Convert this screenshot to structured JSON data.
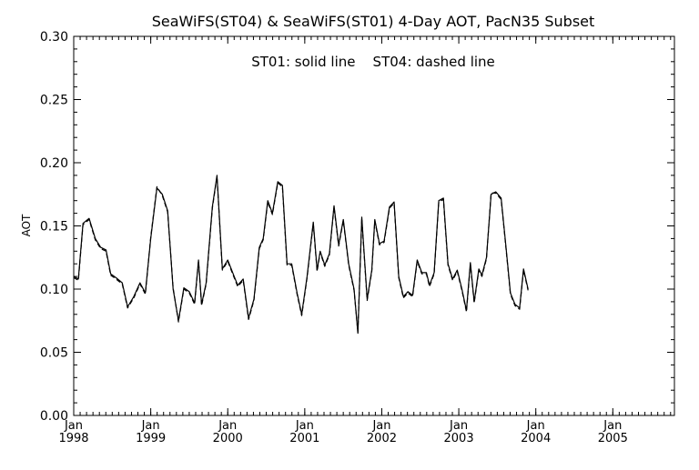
{
  "chart_data": {
    "type": "line",
    "title": "SeaWiFS(ST04) & SeaWiFS(ST01) 4-Day AOT, PacN35 Subset",
    "annotation": "ST01: solid line    ST04: dashed line",
    "ylabel": "AOT",
    "xlabel": "",
    "xlim": [
      1998.0,
      2005.8
    ],
    "ylim": [
      0.0,
      0.3
    ],
    "grid": false,
    "y_ticks": [
      {
        "value": 0.0,
        "label": "0.00"
      },
      {
        "value": 0.05,
        "label": "0.05"
      },
      {
        "value": 0.1,
        "label": "0.10"
      },
      {
        "value": 0.15,
        "label": "0.15"
      },
      {
        "value": 0.2,
        "label": "0.20"
      },
      {
        "value": 0.25,
        "label": "0.25"
      },
      {
        "value": 0.3,
        "label": "0.30"
      }
    ],
    "x_ticks": [
      {
        "value": 1998.0,
        "month": "Jan",
        "year": "1998"
      },
      {
        "value": 1999.0,
        "month": "Jan",
        "year": "1999"
      },
      {
        "value": 2000.0,
        "month": "Jan",
        "year": "2000"
      },
      {
        "value": 2001.0,
        "month": "Jan",
        "year": "2001"
      },
      {
        "value": 2002.0,
        "month": "Jan",
        "year": "2002"
      },
      {
        "value": 2003.0,
        "month": "Jan",
        "year": "2003"
      },
      {
        "value": 2004.0,
        "month": "Jan",
        "year": "2004"
      },
      {
        "value": 2005.0,
        "month": "Jan",
        "year": "2005"
      }
    ],
    "series": [
      {
        "name": "ST01",
        "style": "solid",
        "color": "#000000",
        "points": [
          [
            1998.0,
            0.11
          ],
          [
            1998.06,
            0.108
          ],
          [
            1998.12,
            0.152
          ],
          [
            1998.2,
            0.156
          ],
          [
            1998.28,
            0.14
          ],
          [
            1998.35,
            0.133
          ],
          [
            1998.42,
            0.131
          ],
          [
            1998.48,
            0.112
          ],
          [
            1998.55,
            0.109
          ],
          [
            1998.63,
            0.105
          ],
          [
            1998.7,
            0.086
          ],
          [
            1998.78,
            0.094
          ],
          [
            1998.86,
            0.105
          ],
          [
            1998.93,
            0.097
          ],
          [
            1999.0,
            0.14
          ],
          [
            1999.08,
            0.18
          ],
          [
            1999.15,
            0.175
          ],
          [
            1999.22,
            0.162
          ],
          [
            1999.29,
            0.1
          ],
          [
            1999.36,
            0.075
          ],
          [
            1999.43,
            0.101
          ],
          [
            1999.5,
            0.098
          ],
          [
            1999.57,
            0.089
          ],
          [
            1999.62,
            0.123
          ],
          [
            1999.66,
            0.088
          ],
          [
            1999.72,
            0.105
          ],
          [
            1999.8,
            0.165
          ],
          [
            1999.86,
            0.19
          ],
          [
            1999.93,
            0.116
          ],
          [
            2000.0,
            0.123
          ],
          [
            2000.07,
            0.112
          ],
          [
            2000.13,
            0.103
          ],
          [
            2000.2,
            0.108
          ],
          [
            2000.27,
            0.077
          ],
          [
            2000.34,
            0.092
          ],
          [
            2000.41,
            0.133
          ],
          [
            2000.46,
            0.14
          ],
          [
            2000.52,
            0.17
          ],
          [
            2000.58,
            0.16
          ],
          [
            2000.65,
            0.185
          ],
          [
            2000.71,
            0.182
          ],
          [
            2000.77,
            0.12
          ],
          [
            2000.83,
            0.12
          ],
          [
            2000.9,
            0.097
          ],
          [
            2000.96,
            0.08
          ],
          [
            2001.03,
            0.11
          ],
          [
            2001.11,
            0.153
          ],
          [
            2001.16,
            0.115
          ],
          [
            2001.2,
            0.13
          ],
          [
            2001.26,
            0.119
          ],
          [
            2001.32,
            0.128
          ],
          [
            2001.38,
            0.166
          ],
          [
            2001.44,
            0.135
          ],
          [
            2001.5,
            0.155
          ],
          [
            2001.57,
            0.12
          ],
          [
            2001.64,
            0.1
          ],
          [
            2001.69,
            0.065
          ],
          [
            2001.74,
            0.157
          ],
          [
            2001.81,
            0.092
          ],
          [
            2001.87,
            0.115
          ],
          [
            2001.91,
            0.155
          ],
          [
            2001.97,
            0.136
          ],
          [
            2002.03,
            0.138
          ],
          [
            2002.1,
            0.165
          ],
          [
            2002.16,
            0.169
          ],
          [
            2002.22,
            0.11
          ],
          [
            2002.28,
            0.094
          ],
          [
            2002.34,
            0.098
          ],
          [
            2002.4,
            0.095
          ],
          [
            2002.46,
            0.123
          ],
          [
            2002.52,
            0.113
          ],
          [
            2002.58,
            0.113
          ],
          [
            2002.62,
            0.103
          ],
          [
            2002.68,
            0.113
          ],
          [
            2002.74,
            0.17
          ],
          [
            2002.8,
            0.172
          ],
          [
            2002.86,
            0.12
          ],
          [
            2002.92,
            0.108
          ],
          [
            2002.98,
            0.115
          ],
          [
            2003.04,
            0.1
          ],
          [
            2003.1,
            0.083
          ],
          [
            2003.15,
            0.121
          ],
          [
            2003.2,
            0.09
          ],
          [
            2003.26,
            0.116
          ],
          [
            2003.3,
            0.111
          ],
          [
            2003.36,
            0.125
          ],
          [
            2003.42,
            0.175
          ],
          [
            2003.48,
            0.177
          ],
          [
            2003.55,
            0.172
          ],
          [
            2003.61,
            0.135
          ],
          [
            2003.67,
            0.097
          ],
          [
            2003.73,
            0.088
          ],
          [
            2003.79,
            0.085
          ],
          [
            2003.84,
            0.116
          ],
          [
            2003.9,
            0.1
          ]
        ]
      },
      {
        "name": "ST04",
        "style": "dashed",
        "color": "#000000",
        "points": [
          [
            1998.0,
            0.109
          ],
          [
            1998.06,
            0.107
          ],
          [
            1998.12,
            0.151
          ],
          [
            1998.2,
            0.155
          ],
          [
            1998.28,
            0.139
          ],
          [
            1998.35,
            0.132
          ],
          [
            1998.42,
            0.13
          ],
          [
            1998.48,
            0.111
          ],
          [
            1998.55,
            0.108
          ],
          [
            1998.63,
            0.104
          ],
          [
            1998.7,
            0.085
          ],
          [
            1998.78,
            0.093
          ],
          [
            1998.86,
            0.104
          ],
          [
            1998.93,
            0.096
          ],
          [
            1999.0,
            0.141
          ],
          [
            1999.08,
            0.181
          ],
          [
            1999.15,
            0.174
          ],
          [
            1999.22,
            0.161
          ],
          [
            1999.29,
            0.101
          ],
          [
            1999.36,
            0.074
          ],
          [
            1999.43,
            0.1
          ],
          [
            1999.5,
            0.097
          ],
          [
            1999.57,
            0.088
          ],
          [
            1999.62,
            0.122
          ],
          [
            1999.66,
            0.087
          ],
          [
            1999.72,
            0.104
          ],
          [
            1999.8,
            0.164
          ],
          [
            1999.86,
            0.189
          ],
          [
            1999.93,
            0.115
          ],
          [
            2000.0,
            0.122
          ],
          [
            2000.07,
            0.111
          ],
          [
            2000.13,
            0.102
          ],
          [
            2000.2,
            0.107
          ],
          [
            2000.27,
            0.076
          ],
          [
            2000.34,
            0.091
          ],
          [
            2000.41,
            0.132
          ],
          [
            2000.46,
            0.139
          ],
          [
            2000.52,
            0.169
          ],
          [
            2000.58,
            0.159
          ],
          [
            2000.65,
            0.184
          ],
          [
            2000.71,
            0.181
          ],
          [
            2000.77,
            0.119
          ],
          [
            2000.83,
            0.119
          ],
          [
            2000.9,
            0.096
          ],
          [
            2000.96,
            0.079
          ],
          [
            2001.03,
            0.109
          ],
          [
            2001.11,
            0.152
          ],
          [
            2001.16,
            0.114
          ],
          [
            2001.2,
            0.129
          ],
          [
            2001.26,
            0.118
          ],
          [
            2001.32,
            0.127
          ],
          [
            2001.38,
            0.165
          ],
          [
            2001.44,
            0.134
          ],
          [
            2001.5,
            0.154
          ],
          [
            2001.57,
            0.119
          ],
          [
            2001.64,
            0.099
          ],
          [
            2001.69,
            0.066
          ],
          [
            2001.74,
            0.156
          ],
          [
            2001.81,
            0.091
          ],
          [
            2001.87,
            0.114
          ],
          [
            2001.91,
            0.154
          ],
          [
            2001.97,
            0.135
          ],
          [
            2002.03,
            0.137
          ],
          [
            2002.1,
            0.164
          ],
          [
            2002.16,
            0.168
          ],
          [
            2002.22,
            0.109
          ],
          [
            2002.28,
            0.093
          ],
          [
            2002.34,
            0.097
          ],
          [
            2002.4,
            0.094
          ],
          [
            2002.46,
            0.122
          ],
          [
            2002.52,
            0.112
          ],
          [
            2002.58,
            0.112
          ],
          [
            2002.62,
            0.102
          ],
          [
            2002.68,
            0.112
          ],
          [
            2002.74,
            0.169
          ],
          [
            2002.8,
            0.171
          ],
          [
            2002.86,
            0.119
          ],
          [
            2002.92,
            0.107
          ],
          [
            2002.98,
            0.114
          ],
          [
            2003.04,
            0.099
          ],
          [
            2003.1,
            0.082
          ],
          [
            2003.15,
            0.12
          ],
          [
            2003.2,
            0.089
          ],
          [
            2003.26,
            0.115
          ],
          [
            2003.3,
            0.11
          ],
          [
            2003.36,
            0.124
          ],
          [
            2003.42,
            0.176
          ],
          [
            2003.48,
            0.176
          ],
          [
            2003.55,
            0.171
          ],
          [
            2003.61,
            0.134
          ],
          [
            2003.67,
            0.096
          ],
          [
            2003.73,
            0.087
          ],
          [
            2003.79,
            0.084
          ],
          [
            2003.84,
            0.115
          ],
          [
            2003.9,
            0.099
          ]
        ]
      }
    ]
  }
}
